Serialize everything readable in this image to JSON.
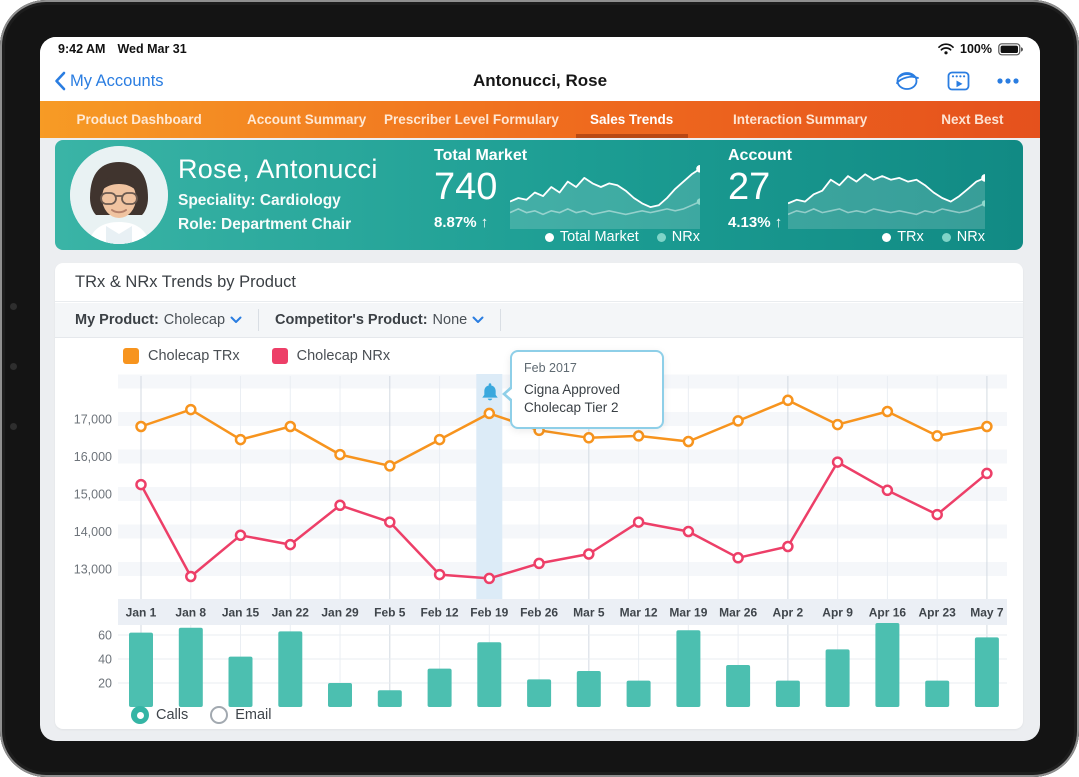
{
  "status_bar": {
    "time": "9:42 AM",
    "date": "Wed Mar 31",
    "battery": "100%"
  },
  "nav": {
    "back_label": "My Accounts",
    "title": "Antonucci, Rose",
    "icons": [
      {
        "name": "meetings-icon"
      },
      {
        "name": "calendar-video-icon"
      },
      {
        "name": "more-icon"
      }
    ]
  },
  "tabs": {
    "items": [
      {
        "label": "Product Dashboard",
        "active": false
      },
      {
        "label": "Account Summary",
        "active": false
      },
      {
        "label": "Prescriber Level Formulary",
        "active": false
      },
      {
        "label": "Sales Trends",
        "active": true
      },
      {
        "label": "Interaction Summary",
        "active": false
      },
      {
        "label": "Next Best",
        "active": false
      }
    ]
  },
  "profile": {
    "name": "Rose, Antonucci",
    "speciality": "Speciality: Cardiology",
    "role": "Role: Department Chair",
    "stats": [
      {
        "label": "Total Market",
        "value": "740",
        "change": "8.87%",
        "trend": "up",
        "legend": [
          "Total Market",
          "NRx"
        ],
        "spark_main": [
          25,
          23,
          24,
          20,
          22,
          17,
          20,
          14,
          17,
          12,
          15,
          17,
          15,
          16,
          19,
          23,
          26,
          28,
          27,
          23,
          18,
          14,
          10,
          7
        ],
        "spark_secondary": [
          31,
          29,
          31,
          30,
          32,
          30,
          31,
          29,
          31,
          30,
          32,
          31,
          30,
          31,
          32,
          31,
          30,
          31,
          30,
          29,
          30,
          29,
          27,
          25
        ]
      },
      {
        "label": "Account",
        "value": "27",
        "change": "4.13%",
        "trend": "up",
        "legend": [
          "TRx",
          "NRx"
        ],
        "spark_main": [
          26,
          24,
          25,
          21,
          19,
          13,
          16,
          11,
          14,
          10,
          13,
          11,
          13,
          12,
          14,
          13,
          16,
          20,
          23,
          25,
          22,
          18,
          14,
          12
        ],
        "spark_secondary": [
          32,
          30,
          31,
          29,
          31,
          30,
          29,
          31,
          30,
          31,
          29,
          30,
          31,
          30,
          31,
          32,
          30,
          31,
          29,
          30,
          31,
          30,
          28,
          26
        ]
      }
    ]
  },
  "chart_card": {
    "title": "TRx & NRx Trends by Product",
    "filters": [
      {
        "label": "My Product:",
        "value": "Cholecap"
      },
      {
        "label": "Competitor's Product:",
        "value": "None"
      }
    ],
    "tooltip": {
      "date": "Feb 2017",
      "text": "Cigna Approved Cholecap Tier 2"
    },
    "radios": [
      {
        "label": "Calls",
        "selected": true
      },
      {
        "label": "Email",
        "selected": false
      }
    ]
  },
  "chart_data": [
    {
      "type": "line",
      "title": "TRx & NRx Trends by Product",
      "categories": [
        "Jan 1",
        "Jan 8",
        "Jan 15",
        "Jan 22",
        "Jan 29",
        "Feb 5",
        "Feb 12",
        "Feb 19",
        "Feb 26",
        "Mar 5",
        "Mar 12",
        "Mar 19",
        "Mar 26",
        "Apr 2",
        "Apr 9",
        "Apr 16",
        "Apr 23",
        "May 7"
      ],
      "series": [
        {
          "name": "Cholecap TRx",
          "color": "#F7941E",
          "values": [
            16800,
            17250,
            16450,
            16800,
            16050,
            15750,
            16450,
            17150,
            16700,
            16500,
            16550,
            16400,
            16950,
            17500,
            16850,
            17200,
            16550,
            16800
          ]
        },
        {
          "name": "Cholecap NRx",
          "color": "#ED3F68",
          "values": [
            15250,
            12800,
            13900,
            13650,
            14700,
            14250,
            12850,
            12750,
            13150,
            13400,
            14250,
            14000,
            13300,
            13600,
            15850,
            15100,
            14450,
            15550
          ]
        }
      ],
      "yticks": [
        13000,
        14000,
        15000,
        16000,
        17000
      ],
      "ylim": [
        12500,
        17800
      ],
      "grid": true,
      "legend_position": "top-left",
      "annotation": {
        "x": "Feb 19",
        "label": "Feb 2017",
        "text": "Cigna Approved Cholecap Tier 2"
      }
    },
    {
      "type": "bar",
      "name": "Calls",
      "categories": [
        "Jan 1",
        "Jan 8",
        "Jan 15",
        "Jan 22",
        "Jan 29",
        "Feb 5",
        "Feb 12",
        "Feb 19",
        "Feb 26",
        "Mar 5",
        "Mar 12",
        "Mar 19",
        "Mar 26",
        "Apr 2",
        "Apr 9",
        "Apr 16",
        "Apr 23",
        "May 7"
      ],
      "values": [
        62,
        66,
        42,
        63,
        20,
        14,
        32,
        54,
        23,
        30,
        22,
        64,
        35,
        22,
        48,
        70,
        22,
        58
      ],
      "yticks": [
        20,
        40,
        60
      ],
      "ylim": [
        0,
        75
      ],
      "color": "#4CBFB0"
    }
  ],
  "colors": {
    "accent_blue": "#2A7DE1",
    "tab_gradient_start": "#F79B25",
    "tab_gradient_end": "#E5511D",
    "teal_card_start": "#3AB4A6",
    "teal_card_end": "#118A84",
    "trx_orange": "#F7941E",
    "nrx_pink": "#ED3F68",
    "bar_teal": "#4CBFB0",
    "highlight_band": "#DCEBF7",
    "tooltip_border": "#8ECFE8",
    "bell_blue": "#3AA8DD",
    "radio_teal": "#35B5A5"
  }
}
